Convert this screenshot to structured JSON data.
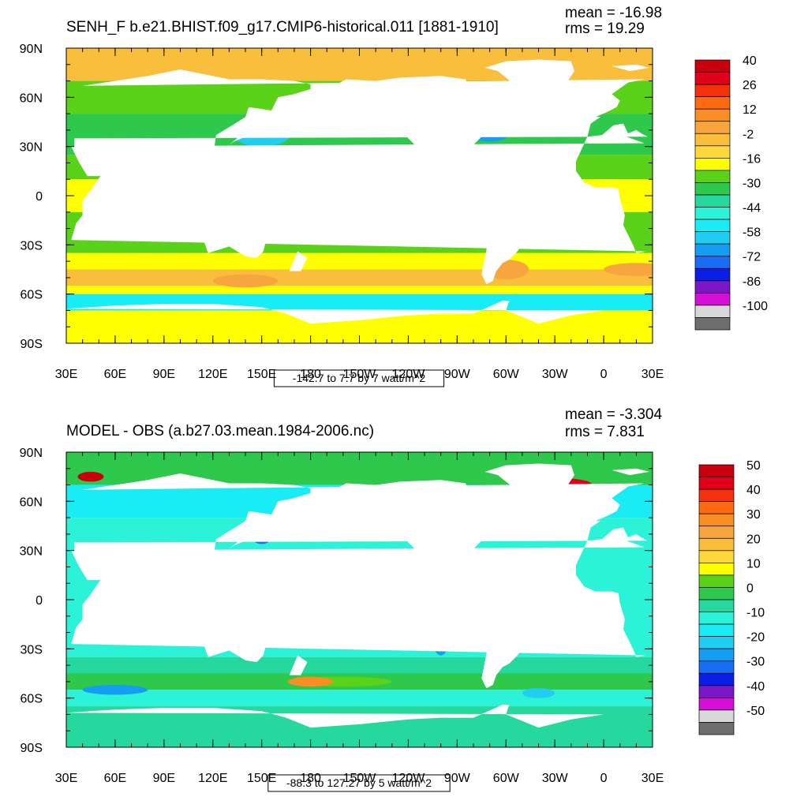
{
  "chart_data": [
    {
      "type": "heatmap",
      "title": "SENH_F b.e21.BHIST.f09_g17.CMIP6-historical.011 [1881-1910]",
      "stats": {
        "mean": "mean = -16.98",
        "rms": "rms = 19.29"
      },
      "subtitle_box": "-142.7 to 7.7 by 7 watt/m^2",
      "x_ticks": [
        "30E",
        "60E",
        "90E",
        "120E",
        "150E",
        "180",
        "150W",
        "120W",
        "90W",
        "60W",
        "30W",
        "0",
        "30E"
      ],
      "y_ticks": [
        "90N",
        "60N",
        "30N",
        "0",
        "30S",
        "60S",
        "90S"
      ],
      "xlim": [
        "30E",
        "30E"
      ],
      "ylim": [
        "90S",
        "90N"
      ],
      "colorbar": {
        "levels_all": [
          40,
          33,
          26,
          19,
          12,
          5,
          -2,
          -9,
          -16,
          -23,
          -30,
          -37,
          -44,
          -51,
          -58,
          -65,
          -72,
          -79,
          -86,
          -93,
          -100
        ],
        "labels": [
          "40",
          "26",
          "12",
          "-2",
          "-16",
          "-30",
          "-44",
          "-58",
          "-72",
          "-86",
          "-100"
        ],
        "colors": [
          "#c8000e",
          "#e0001a",
          "#f5300c",
          "#fd6b10",
          "#f98e25",
          "#f7a53e",
          "#f9be3c",
          "#fdd83d",
          "#ffff00",
          "#5ad21a",
          "#2ec94c",
          "#27d89e",
          "#2cf2d8",
          "#19ecf5",
          "#21cdf2",
          "#159df2",
          "#1a6cf2",
          "#0a1ee6",
          "#7a18c9",
          "#d60fd6",
          "#d8d8d8",
          "#6e6e6e"
        ]
      }
    },
    {
      "type": "heatmap",
      "title": "MODEL - OBS (a.b27.03.mean.1984-2006.nc)",
      "stats": {
        "mean": "mean = -3.304",
        "rms": "rms = 7.831"
      },
      "subtitle_box": "-88.3 to 127.27 by 5 watt/m^2",
      "x_ticks": [
        "30E",
        "60E",
        "90E",
        "120E",
        "150E",
        "180",
        "150W",
        "120W",
        "90W",
        "60W",
        "30W",
        "0",
        "30E"
      ],
      "y_ticks": [
        "90N",
        "60N",
        "30N",
        "0",
        "30S",
        "60S",
        "90S"
      ],
      "xlim": [
        "30E",
        "30E"
      ],
      "ylim": [
        "90S",
        "90N"
      ],
      "colorbar": {
        "levels_all": [
          50,
          45,
          40,
          35,
          30,
          25,
          20,
          15,
          10,
          5,
          0,
          -5,
          -10,
          -15,
          -20,
          -25,
          -30,
          -35,
          -40,
          -45,
          -50
        ],
        "labels": [
          "50",
          "40",
          "30",
          "20",
          "10",
          "0",
          "-10",
          "-20",
          "-30",
          "-40",
          "-50"
        ],
        "colors": [
          "#c8000e",
          "#e0001a",
          "#f5300c",
          "#fd6b10",
          "#f98e25",
          "#f7a53e",
          "#f9be3c",
          "#fdd83d",
          "#ffff00",
          "#5ad21a",
          "#2ec94c",
          "#27d89e",
          "#2cf2d8",
          "#19ecf5",
          "#21cdf2",
          "#159df2",
          "#1a6cf2",
          "#0a1ee6",
          "#7a18c9",
          "#d60fd6",
          "#d8d8d8",
          "#6e6e6e"
        ]
      }
    }
  ],
  "colors": {
    "land": "#ffffff",
    "frame": "#000000"
  }
}
